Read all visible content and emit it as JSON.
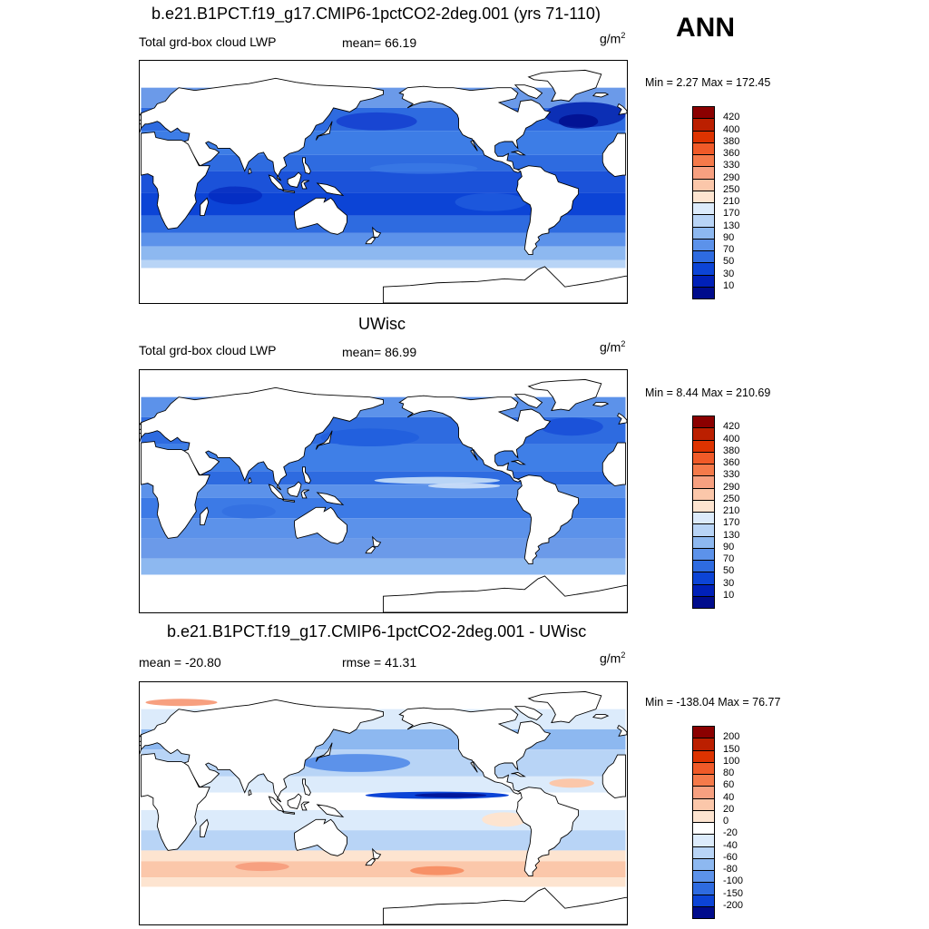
{
  "panels": [
    {
      "id": "top",
      "title": "b.e21.B1PCT.f19_g17.CMIP6-1pctCO2-2deg.001 (yrs 71-110)",
      "left_text": "Total grd-box cloud LWP",
      "mid_text": "mean=  66.19",
      "units_base": "g/m",
      "units_sup": "2",
      "minmax": "Min =   2.27 Max = 172.45",
      "scale": "lwp",
      "field": "model"
    },
    {
      "id": "middle",
      "title": "UWisc",
      "left_text": "Total grd-box cloud LWP",
      "mid_text": "mean=  86.99",
      "units_base": "g/m",
      "units_sup": "2",
      "minmax": "Min =   8.44 Max = 210.69",
      "scale": "lwp",
      "field": "obs"
    },
    {
      "id": "bottom",
      "title": "b.e21.B1PCT.f19_g17.CMIP6-1pctCO2-2deg.001 - UWisc",
      "left_text": "mean = -20.80",
      "mid_text": "rmse =  41.31",
      "units_base": "g/m",
      "units_sup": "2",
      "minmax": "Min = -138.04 Max =  76.77",
      "scale": "diff",
      "field": "diff"
    }
  ],
  "season": "ANN",
  "colorbars": {
    "lwp": {
      "labels": [
        "420",
        "400",
        "380",
        "360",
        "330",
        "290",
        "250",
        "210",
        "170",
        "130",
        "90",
        "70",
        "50",
        "30",
        "10"
      ],
      "colors": [
        "#8b0000",
        "#bb1f00",
        "#dd3300",
        "#f05a28",
        "#f57a4a",
        "#f7a080",
        "#fbc7aa",
        "#fde4d0",
        "#dcebfb",
        "#b8d4f6",
        "#8db8f0",
        "#5c92ea",
        "#2e6be0",
        "#0c44d6",
        "#0020b8",
        "#000c8c"
      ]
    },
    "diff": {
      "labels": [
        "200",
        "150",
        "100",
        "80",
        "60",
        "40",
        "20",
        "0",
        "-20",
        "-40",
        "-60",
        "-80",
        "-100",
        "-150",
        "-200"
      ],
      "colors": [
        "#8b0000",
        "#bb1f00",
        "#dd3300",
        "#f05a28",
        "#f57a4a",
        "#f7a080",
        "#fbc7aa",
        "#fde4d0",
        "#ffffff",
        "#dcebfb",
        "#b8d4f6",
        "#8db8f0",
        "#5c92ea",
        "#2e6be0",
        "#0c44d6",
        "#000c8c"
      ]
    }
  }
}
